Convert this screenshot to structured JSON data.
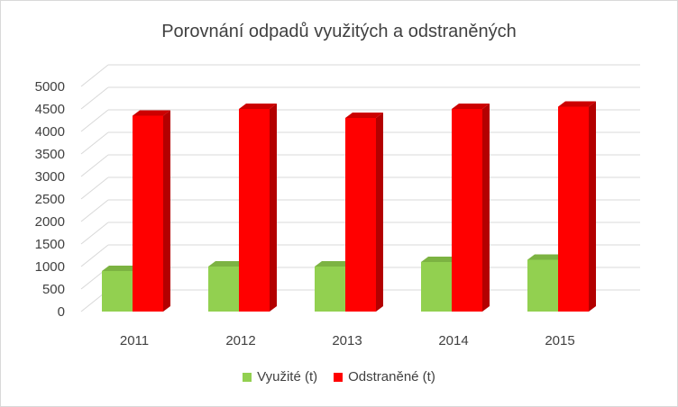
{
  "chart_data": {
    "type": "bar",
    "title": "Porovnání odpadů využitých a odstraněných",
    "categories": [
      "2011",
      "2012",
      "2013",
      "2014",
      "2015"
    ],
    "series": [
      {
        "name": "Využité (t)",
        "values": [
          900,
          1000,
          1000,
          1100,
          1150
        ],
        "color": "#92d050",
        "side_color": "#6ea83a",
        "top_color": "#7cb342"
      },
      {
        "name": "Odstraněné (t)",
        "values": [
          4350,
          4500,
          4300,
          4500,
          4550
        ],
        "color": "#ff0000",
        "side_color": "#b30000",
        "top_color": "#cc0000"
      }
    ],
    "y_ticks": [
      "0",
      "500",
      "1000",
      "1500",
      "2000",
      "2500",
      "3000",
      "3500",
      "4000",
      "4500",
      "5000"
    ],
    "ylim": [
      0,
      5000
    ],
    "grid": true,
    "legend_position": "bottom",
    "three_d": true
  }
}
